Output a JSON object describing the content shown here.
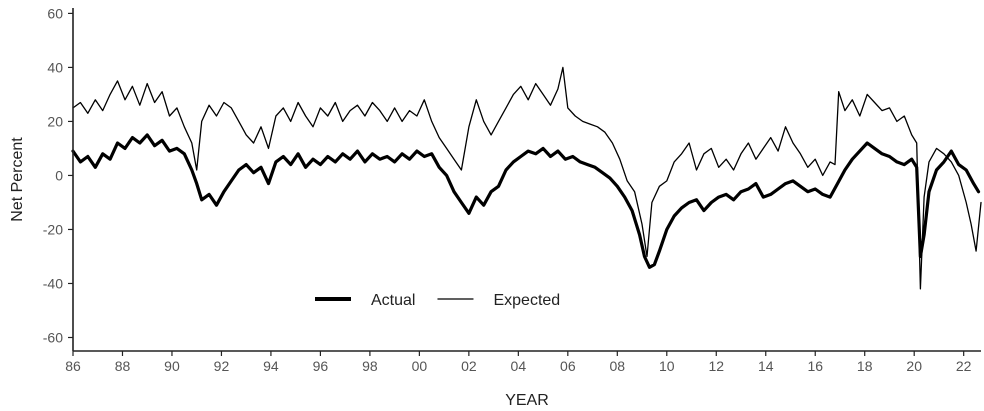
{
  "chart_data": {
    "type": "line",
    "xlabel": "YEAR",
    "ylabel": "Net Percent",
    "xlim": [
      1986,
      2022.7
    ],
    "ylim": [
      -65,
      62
    ],
    "x_ticks": [
      1986,
      1988,
      1990,
      1992,
      1994,
      1996,
      1998,
      2000,
      2002,
      2004,
      2006,
      2008,
      2010,
      2012,
      2014,
      2016,
      2018,
      2020,
      2022
    ],
    "x_tick_labels": [
      "86",
      "88",
      "90",
      "92",
      "94",
      "96",
      "98",
      "00",
      "02",
      "04",
      "06",
      "08",
      "10",
      "12",
      "14",
      "16",
      "18",
      "20",
      "22"
    ],
    "y_ticks": [
      60,
      40,
      20,
      0,
      -20,
      -40,
      -60
    ],
    "y_tick_labels": [
      "60",
      "40",
      "20",
      "0",
      "-20",
      "-40",
      "-60"
    ],
    "grid": false,
    "legend": {
      "placement": "bottom-center",
      "orientation": "horizontal"
    },
    "series": [
      {
        "name": "Actual",
        "color": "#000000",
        "style": "thick",
        "points": [
          [
            1986.0,
            9
          ],
          [
            1986.3,
            5
          ],
          [
            1986.6,
            7
          ],
          [
            1986.9,
            3
          ],
          [
            1987.2,
            8
          ],
          [
            1987.5,
            6
          ],
          [
            1987.8,
            12
          ],
          [
            1988.1,
            10
          ],
          [
            1988.4,
            14
          ],
          [
            1988.7,
            12
          ],
          [
            1989.0,
            15
          ],
          [
            1989.3,
            11
          ],
          [
            1989.6,
            13
          ],
          [
            1989.9,
            9
          ],
          [
            1990.2,
            10
          ],
          [
            1990.5,
            8
          ],
          [
            1990.8,
            2
          ],
          [
            1991.0,
            -3
          ],
          [
            1991.2,
            -9
          ],
          [
            1991.5,
            -7
          ],
          [
            1991.8,
            -11
          ],
          [
            1992.1,
            -6
          ],
          [
            1992.4,
            -2
          ],
          [
            1992.7,
            2
          ],
          [
            1993.0,
            4
          ],
          [
            1993.3,
            1
          ],
          [
            1993.6,
            3
          ],
          [
            1993.9,
            -3
          ],
          [
            1994.2,
            5
          ],
          [
            1994.5,
            7
          ],
          [
            1994.8,
            4
          ],
          [
            1995.1,
            8
          ],
          [
            1995.4,
            3
          ],
          [
            1995.7,
            6
          ],
          [
            1996.0,
            4
          ],
          [
            1996.3,
            7
          ],
          [
            1996.6,
            5
          ],
          [
            1996.9,
            8
          ],
          [
            1997.2,
            6
          ],
          [
            1997.5,
            9
          ],
          [
            1997.8,
            5
          ],
          [
            1998.1,
            8
          ],
          [
            1998.4,
            6
          ],
          [
            1998.7,
            7
          ],
          [
            1999.0,
            5
          ],
          [
            1999.3,
            8
          ],
          [
            1999.6,
            6
          ],
          [
            1999.9,
            9
          ],
          [
            2000.2,
            7
          ],
          [
            2000.5,
            8
          ],
          [
            2000.8,
            3
          ],
          [
            2001.1,
            0
          ],
          [
            2001.4,
            -6
          ],
          [
            2001.7,
            -10
          ],
          [
            2002.0,
            -14
          ],
          [
            2002.3,
            -8
          ],
          [
            2002.6,
            -11
          ],
          [
            2002.9,
            -6
          ],
          [
            2003.2,
            -4
          ],
          [
            2003.5,
            2
          ],
          [
            2003.8,
            5
          ],
          [
            2004.1,
            7
          ],
          [
            2004.4,
            9
          ],
          [
            2004.7,
            8
          ],
          [
            2005.0,
            10
          ],
          [
            2005.3,
            7
          ],
          [
            2005.6,
            9
          ],
          [
            2005.9,
            6
          ],
          [
            2006.2,
            7
          ],
          [
            2006.5,
            5
          ],
          [
            2006.8,
            4
          ],
          [
            2007.1,
            3
          ],
          [
            2007.4,
            1
          ],
          [
            2007.7,
            -1
          ],
          [
            2008.0,
            -4
          ],
          [
            2008.3,
            -8
          ],
          [
            2008.6,
            -13
          ],
          [
            2008.9,
            -22
          ],
          [
            2009.1,
            -30
          ],
          [
            2009.3,
            -34
          ],
          [
            2009.5,
            -33
          ],
          [
            2009.7,
            -28
          ],
          [
            2010.0,
            -20
          ],
          [
            2010.3,
            -15
          ],
          [
            2010.6,
            -12
          ],
          [
            2010.9,
            -10
          ],
          [
            2011.2,
            -9
          ],
          [
            2011.5,
            -13
          ],
          [
            2011.8,
            -10
          ],
          [
            2012.1,
            -8
          ],
          [
            2012.4,
            -7
          ],
          [
            2012.7,
            -9
          ],
          [
            2013.0,
            -6
          ],
          [
            2013.3,
            -5
          ],
          [
            2013.6,
            -3
          ],
          [
            2013.9,
            -8
          ],
          [
            2014.2,
            -7
          ],
          [
            2014.5,
            -5
          ],
          [
            2014.8,
            -3
          ],
          [
            2015.1,
            -2
          ],
          [
            2015.4,
            -4
          ],
          [
            2015.7,
            -6
          ],
          [
            2016.0,
            -5
          ],
          [
            2016.3,
            -7
          ],
          [
            2016.6,
            -8
          ],
          [
            2016.9,
            -3
          ],
          [
            2017.2,
            2
          ],
          [
            2017.5,
            6
          ],
          [
            2017.8,
            9
          ],
          [
            2018.1,
            12
          ],
          [
            2018.4,
            10
          ],
          [
            2018.7,
            8
          ],
          [
            2019.0,
            7
          ],
          [
            2019.3,
            5
          ],
          [
            2019.6,
            4
          ],
          [
            2019.9,
            6
          ],
          [
            2020.1,
            3
          ],
          [
            2020.25,
            -30
          ],
          [
            2020.4,
            -22
          ],
          [
            2020.6,
            -6
          ],
          [
            2020.9,
            2
          ],
          [
            2021.2,
            5
          ],
          [
            2021.5,
            9
          ],
          [
            2021.8,
            4
          ],
          [
            2022.1,
            2
          ],
          [
            2022.4,
            -3
          ],
          [
            2022.6,
            -6
          ]
        ]
      },
      {
        "name": "Expected",
        "color": "#000000",
        "style": "thin",
        "points": [
          [
            1986.0,
            25
          ],
          [
            1986.3,
            27
          ],
          [
            1986.6,
            23
          ],
          [
            1986.9,
            28
          ],
          [
            1987.2,
            24
          ],
          [
            1987.5,
            30
          ],
          [
            1987.8,
            35
          ],
          [
            1988.1,
            28
          ],
          [
            1988.4,
            33
          ],
          [
            1988.7,
            26
          ],
          [
            1989.0,
            34
          ],
          [
            1989.3,
            27
          ],
          [
            1989.6,
            31
          ],
          [
            1989.9,
            22
          ],
          [
            1990.2,
            25
          ],
          [
            1990.5,
            18
          ],
          [
            1990.8,
            12
          ],
          [
            1991.0,
            2
          ],
          [
            1991.2,
            20
          ],
          [
            1991.5,
            26
          ],
          [
            1991.8,
            22
          ],
          [
            1992.1,
            27
          ],
          [
            1992.4,
            25
          ],
          [
            1992.7,
            20
          ],
          [
            1993.0,
            15
          ],
          [
            1993.3,
            12
          ],
          [
            1993.6,
            18
          ],
          [
            1993.9,
            10
          ],
          [
            1994.2,
            22
          ],
          [
            1994.5,
            25
          ],
          [
            1994.8,
            20
          ],
          [
            1995.1,
            27
          ],
          [
            1995.4,
            22
          ],
          [
            1995.7,
            18
          ],
          [
            1996.0,
            25
          ],
          [
            1996.3,
            22
          ],
          [
            1996.6,
            27
          ],
          [
            1996.9,
            20
          ],
          [
            1997.2,
            24
          ],
          [
            1997.5,
            26
          ],
          [
            1997.8,
            22
          ],
          [
            1998.1,
            27
          ],
          [
            1998.4,
            24
          ],
          [
            1998.7,
            20
          ],
          [
            1999.0,
            25
          ],
          [
            1999.3,
            20
          ],
          [
            1999.6,
            24
          ],
          [
            1999.9,
            22
          ],
          [
            2000.2,
            28
          ],
          [
            2000.5,
            20
          ],
          [
            2000.8,
            14
          ],
          [
            2001.1,
            10
          ],
          [
            2001.4,
            6
          ],
          [
            2001.7,
            2
          ],
          [
            2002.0,
            18
          ],
          [
            2002.3,
            28
          ],
          [
            2002.6,
            20
          ],
          [
            2002.9,
            15
          ],
          [
            2003.2,
            20
          ],
          [
            2003.5,
            25
          ],
          [
            2003.8,
            30
          ],
          [
            2004.1,
            33
          ],
          [
            2004.4,
            28
          ],
          [
            2004.7,
            34
          ],
          [
            2005.0,
            30
          ],
          [
            2005.3,
            26
          ],
          [
            2005.6,
            32
          ],
          [
            2005.8,
            40
          ],
          [
            2006.0,
            25
          ],
          [
            2006.3,
            22
          ],
          [
            2006.6,
            20
          ],
          [
            2006.9,
            19
          ],
          [
            2007.2,
            18
          ],
          [
            2007.5,
            16
          ],
          [
            2007.8,
            12
          ],
          [
            2008.1,
            6
          ],
          [
            2008.4,
            -2
          ],
          [
            2008.7,
            -6
          ],
          [
            2009.0,
            -18
          ],
          [
            2009.2,
            -30
          ],
          [
            2009.4,
            -10
          ],
          [
            2009.7,
            -4
          ],
          [
            2010.0,
            -2
          ],
          [
            2010.3,
            5
          ],
          [
            2010.6,
            8
          ],
          [
            2010.9,
            12
          ],
          [
            2011.2,
            2
          ],
          [
            2011.5,
            8
          ],
          [
            2011.8,
            10
          ],
          [
            2012.1,
            3
          ],
          [
            2012.4,
            6
          ],
          [
            2012.7,
            2
          ],
          [
            2013.0,
            8
          ],
          [
            2013.3,
            12
          ],
          [
            2013.6,
            6
          ],
          [
            2013.9,
            10
          ],
          [
            2014.2,
            14
          ],
          [
            2014.5,
            9
          ],
          [
            2014.8,
            18
          ],
          [
            2015.1,
            12
          ],
          [
            2015.4,
            8
          ],
          [
            2015.7,
            3
          ],
          [
            2016.0,
            6
          ],
          [
            2016.3,
            0
          ],
          [
            2016.6,
            5
          ],
          [
            2016.8,
            4
          ],
          [
            2016.95,
            31
          ],
          [
            2017.2,
            24
          ],
          [
            2017.5,
            28
          ],
          [
            2017.8,
            22
          ],
          [
            2018.1,
            30
          ],
          [
            2018.4,
            27
          ],
          [
            2018.7,
            24
          ],
          [
            2019.0,
            25
          ],
          [
            2019.3,
            20
          ],
          [
            2019.6,
            22
          ],
          [
            2019.9,
            15
          ],
          [
            2020.1,
            12
          ],
          [
            2020.25,
            -42
          ],
          [
            2020.4,
            -8
          ],
          [
            2020.6,
            5
          ],
          [
            2020.9,
            10
          ],
          [
            2021.2,
            8
          ],
          [
            2021.5,
            5
          ],
          [
            2021.8,
            0
          ],
          [
            2022.1,
            -10
          ],
          [
            2022.3,
            -18
          ],
          [
            2022.5,
            -28
          ],
          [
            2022.7,
            -10
          ]
        ]
      }
    ]
  }
}
